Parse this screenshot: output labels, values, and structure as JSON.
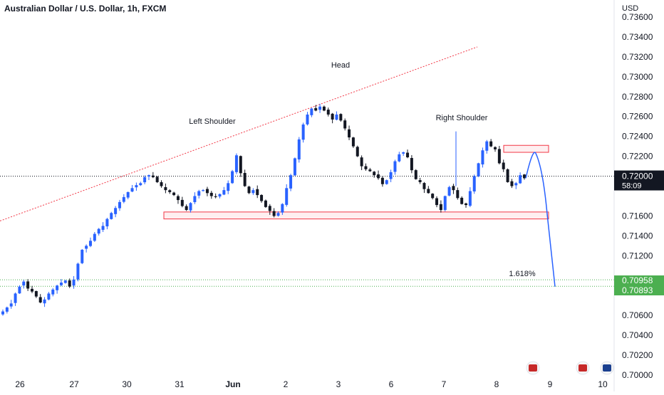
{
  "chart_data": {
    "type": "candlestick",
    "title": "Australian Dollar / U.S. Dollar, 1h, FXCM",
    "currency_label": "USD",
    "y_ticks": [
      "0.73600",
      "0.73400",
      "0.73200",
      "0.73000",
      "0.72800",
      "0.72600",
      "0.72400",
      "0.72200",
      "0.71600",
      "0.71400",
      "0.71200",
      "0.70600",
      "0.70400",
      "0.70200",
      "0.70000"
    ],
    "x_ticks": [
      "26",
      "27",
      "30",
      "31",
      "Jun",
      "2",
      "3",
      "6",
      "7",
      "8",
      "9",
      "10"
    ],
    "current_price": {
      "value": 0.72,
      "label": "0.72000",
      "countdown": "58:09"
    },
    "target_labels": [
      {
        "value": 0.70958,
        "label": "0.70958"
      },
      {
        "value": 0.70893,
        "label": "0.70893"
      }
    ],
    "annotations": {
      "left_shoulder": "Left Shoulder",
      "head": "Head",
      "right_shoulder": "Right Shoulder",
      "fib": "1.618%"
    },
    "candle_color": "#2962ff",
    "colors": {
      "up": "#2962ff",
      "down": "#131722",
      "support": "#f23645",
      "target": "#4caf50",
      "trend": "#f23645"
    },
    "path_closes": [
      0.7064,
      0.7068,
      0.7072,
      0.7082,
      0.7089,
      0.7094,
      0.7087,
      0.7084,
      0.7079,
      0.7073,
      0.7076,
      0.7082,
      0.7086,
      0.709,
      0.7093,
      0.7095,
      0.7089,
      0.7096,
      0.7112,
      0.7126,
      0.713,
      0.7135,
      0.7142,
      0.7147,
      0.715,
      0.7157,
      0.7163,
      0.7168,
      0.7174,
      0.7179,
      0.7184,
      0.7188,
      0.7191,
      0.7193,
      0.7199,
      0.7201,
      0.7199,
      0.7194,
      0.719,
      0.7186,
      0.7184,
      0.7181,
      0.7176,
      0.717,
      0.7166,
      0.7173,
      0.718,
      0.7185,
      0.7186,
      0.7183,
      0.718,
      0.7179,
      0.7182,
      0.7186,
      0.7193,
      0.7205,
      0.7221,
      0.7203,
      0.719,
      0.7183,
      0.7186,
      0.7181,
      0.7175,
      0.7169,
      0.7165,
      0.716,
      0.7163,
      0.7172,
      0.7188,
      0.7201,
      0.7218,
      0.7237,
      0.7252,
      0.7262,
      0.7268,
      0.7266,
      0.727,
      0.7266,
      0.7262,
      0.7257,
      0.7262,
      0.7256,
      0.7248,
      0.7239,
      0.723,
      0.722,
      0.721,
      0.7207,
      0.7205,
      0.7201,
      0.7198,
      0.7192,
      0.7196,
      0.7204,
      0.7215,
      0.7222,
      0.7224,
      0.7219,
      0.7206,
      0.7197,
      0.7194,
      0.7187,
      0.7183,
      0.7178,
      0.7171,
      0.7166,
      0.718,
      0.7189,
      0.7186,
      0.7178,
      0.7172,
      0.7171,
      0.7185,
      0.72,
      0.7213,
      0.7226,
      0.7235,
      0.723,
      0.7227,
      0.7213,
      0.7207,
      0.7194,
      0.719,
      0.7193,
      0.7201,
      0.7198
    ],
    "projection": [
      0.7198,
      0.7223,
      0.7208,
      0.7162,
      0.7089
    ]
  }
}
